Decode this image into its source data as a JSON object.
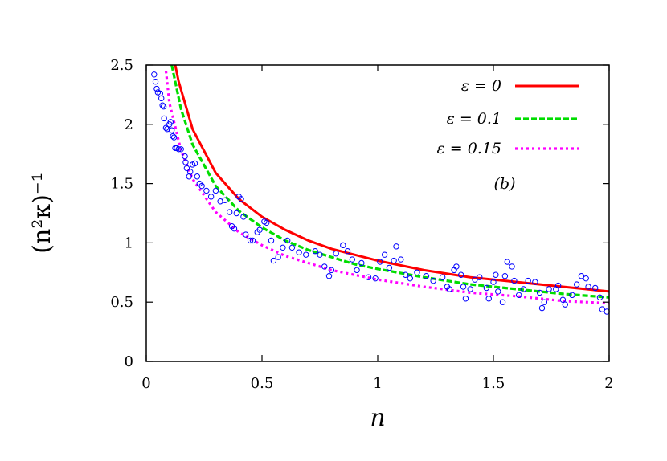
{
  "chart_data": {
    "type": "line",
    "title": "",
    "xlabel": "n",
    "ylabel": "(n²κ)⁻¹",
    "xlim": [
      0,
      2
    ],
    "ylim": [
      0,
      2.5
    ],
    "xticks": [
      "0",
      "0.5",
      "1",
      "1.5",
      "2"
    ],
    "xtick_values": [
      0,
      0.5,
      1,
      1.5,
      2
    ],
    "yticks": [
      "0",
      "0.5",
      "1",
      "1.5",
      "2",
      "2.5"
    ],
    "ytick_values": [
      0,
      0.5,
      1,
      1.5,
      2,
      2.5
    ],
    "grid": false,
    "legend_placement": "top-right",
    "annotation": "(b)",
    "series": [
      {
        "name": "ε = 0",
        "style": "solid",
        "color": "#ff0000",
        "x": [
          0.125,
          0.14,
          0.2,
          0.3,
          0.4,
          0.5,
          0.6,
          0.7,
          0.8,
          0.9,
          1.0,
          1.2,
          1.4,
          1.6,
          1.8,
          2.0
        ],
        "y": [
          2.5,
          2.36,
          1.96,
          1.59,
          1.37,
          1.22,
          1.11,
          1.02,
          0.95,
          0.9,
          0.85,
          0.77,
          0.71,
          0.67,
          0.63,
          0.59
        ]
      },
      {
        "name": "ε = 0.1",
        "style": "dashed",
        "color": "#00dd00",
        "x": [
          0.11,
          0.15,
          0.2,
          0.3,
          0.4,
          0.5,
          0.6,
          0.7,
          0.8,
          0.9,
          1.0,
          1.2,
          1.4,
          1.6,
          1.8,
          2.0
        ],
        "y": [
          2.5,
          2.13,
          1.83,
          1.48,
          1.27,
          1.13,
          1.02,
          0.94,
          0.88,
          0.82,
          0.78,
          0.71,
          0.65,
          0.61,
          0.57,
          0.54
        ]
      },
      {
        "name": "ε = 0.15",
        "style": "dotted",
        "color": "#ff00ff",
        "x": [
          0.085,
          0.1,
          0.15,
          0.2,
          0.3,
          0.4,
          0.5,
          0.6,
          0.7,
          0.8,
          0.9,
          1.0,
          1.2,
          1.4,
          1.6,
          1.8,
          2.0
        ],
        "y": [
          2.45,
          2.18,
          1.78,
          1.54,
          1.26,
          1.09,
          0.98,
          0.89,
          0.83,
          0.77,
          0.73,
          0.69,
          0.63,
          0.58,
          0.55,
          0.51,
          0.49
        ]
      },
      {
        "style": "circles",
        "color": "#0000ff",
        "x": [
          0.034,
          0.04,
          0.045,
          0.05,
          0.06,
          0.065,
          0.07,
          0.075,
          0.077,
          0.085,
          0.09,
          0.1,
          0.105,
          0.11,
          0.115,
          0.12,
          0.125,
          0.132,
          0.14,
          0.15,
          0.167,
          0.17,
          0.175,
          0.185,
          0.19,
          0.2,
          0.21,
          0.22,
          0.23,
          0.24,
          0.26,
          0.28,
          0.3,
          0.32,
          0.34,
          0.36,
          0.37,
          0.38,
          0.39,
          0.4,
          0.41,
          0.42,
          0.43,
          0.45,
          0.46,
          0.48,
          0.49,
          0.51,
          0.52,
          0.54,
          0.55,
          0.57,
          0.59,
          0.61,
          0.63,
          0.66,
          0.69,
          0.73,
          0.75,
          0.77,
          0.79,
          0.8,
          0.82,
          0.85,
          0.87,
          0.89,
          0.91,
          0.93,
          0.96,
          0.99,
          1.01,
          1.03,
          1.05,
          1.07,
          1.08,
          1.1,
          1.12,
          1.14,
          1.17,
          1.21,
          1.24,
          1.28,
          1.3,
          1.31,
          1.33,
          1.34,
          1.36,
          1.37,
          1.38,
          1.4,
          1.42,
          1.44,
          1.47,
          1.48,
          1.5,
          1.51,
          1.52,
          1.54,
          1.55,
          1.56,
          1.58,
          1.59,
          1.61,
          1.63,
          1.65,
          1.68,
          1.7,
          1.71,
          1.72,
          1.74,
          1.77,
          1.78,
          1.8,
          1.81,
          1.84,
          1.86,
          1.88,
          1.9,
          1.91,
          1.94,
          1.96,
          1.97,
          1.99
        ],
        "y": [
          2.42,
          2.36,
          2.3,
          2.27,
          2.26,
          2.22,
          2.16,
          2.15,
          2.05,
          1.97,
          1.96,
          2.0,
          2.02,
          1.95,
          1.9,
          1.89,
          1.8,
          1.8,
          1.79,
          1.79,
          1.73,
          1.68,
          1.63,
          1.56,
          1.6,
          1.66,
          1.67,
          1.56,
          1.5,
          1.48,
          1.44,
          1.39,
          1.44,
          1.35,
          1.36,
          1.26,
          1.14,
          1.12,
          1.25,
          1.39,
          1.37,
          1.22,
          1.07,
          1.02,
          1.02,
          1.09,
          1.11,
          1.18,
          1.17,
          1.02,
          0.85,
          0.88,
          0.96,
          1.02,
          0.96,
          0.92,
          0.9,
          0.93,
          0.9,
          0.8,
          0.72,
          0.77,
          0.91,
          0.98,
          0.93,
          0.86,
          0.77,
          0.83,
          0.71,
          0.7,
          0.84,
          0.9,
          0.79,
          0.85,
          0.97,
          0.86,
          0.73,
          0.7,
          0.75,
          0.72,
          0.68,
          0.71,
          0.63,
          0.61,
          0.77,
          0.8,
          0.73,
          0.63,
          0.53,
          0.61,
          0.69,
          0.71,
          0.62,
          0.53,
          0.67,
          0.73,
          0.59,
          0.5,
          0.72,
          0.84,
          0.8,
          0.68,
          0.56,
          0.61,
          0.68,
          0.67,
          0.58,
          0.45,
          0.5,
          0.61,
          0.61,
          0.64,
          0.52,
          0.48,
          0.56,
          0.65,
          0.72,
          0.7,
          0.63,
          0.62,
          0.54,
          0.44,
          0.42
        ]
      }
    ]
  }
}
